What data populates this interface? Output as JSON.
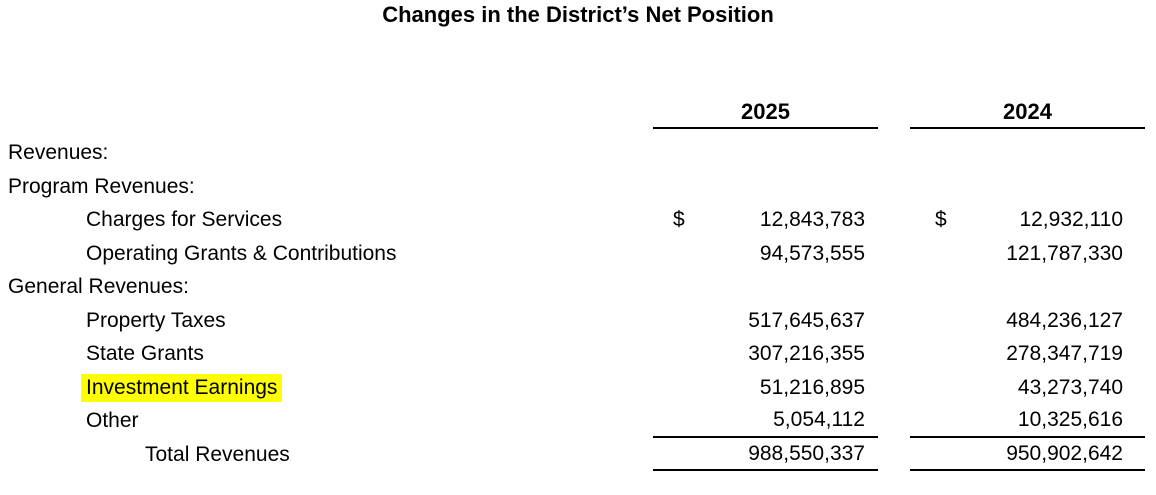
{
  "title": "Changes in the District’s Net Position",
  "table": {
    "currency_symbol": "$",
    "highlight_color": "#ffff00",
    "col_headers": {
      "y2025": "2025",
      "y2024": "2024"
    },
    "rows": [
      {
        "label": "Revenues:",
        "v2025": "",
        "v2024": ""
      },
      {
        "label": "Program Revenues:",
        "v2025": "",
        "v2024": ""
      },
      {
        "label": "Charges for Services",
        "v2025": "12,843,783",
        "v2024": "12,932,110"
      },
      {
        "label": "Operating Grants & Contributions",
        "v2025": "94,573,555",
        "v2024": "121,787,330"
      },
      {
        "label": "General Revenues:",
        "v2025": "",
        "v2024": ""
      },
      {
        "label": "Property Taxes",
        "v2025": "517,645,637",
        "v2024": "484,236,127"
      },
      {
        "label": "State Grants",
        "v2025": "307,216,355",
        "v2024": "278,347,719"
      },
      {
        "label": "Investment Earnings",
        "v2025": "51,216,895",
        "v2024": "43,273,740"
      },
      {
        "label": "Other",
        "v2025": "5,054,112",
        "v2024": "10,325,616"
      },
      {
        "label": "Total Revenues",
        "v2025": "988,550,337",
        "v2024": "950,902,642"
      }
    ]
  }
}
